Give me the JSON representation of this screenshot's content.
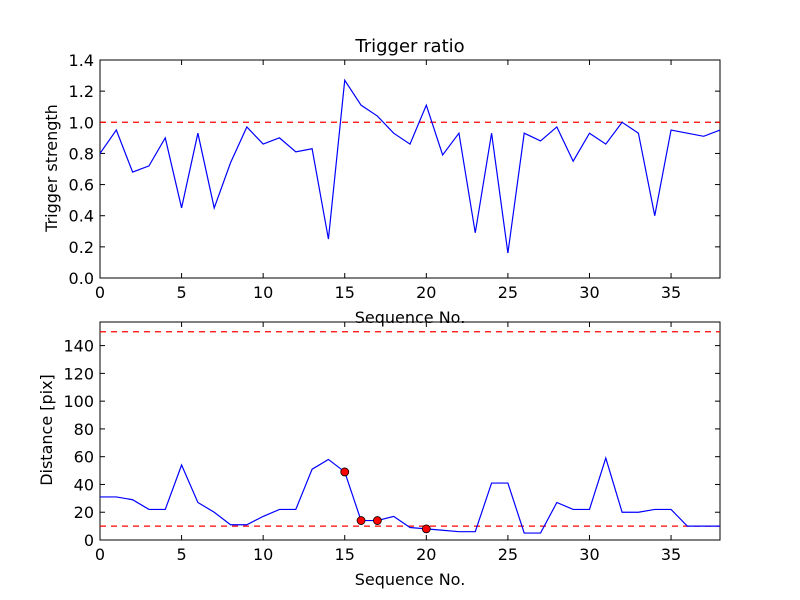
{
  "chart_data": [
    {
      "type": "line",
      "title": "Trigger ratio",
      "xlabel": "Sequence No.",
      "ylabel": "Trigger strength",
      "xlim": [
        0,
        38
      ],
      "ylim": [
        0,
        1.4
      ],
      "xticks": [
        "0",
        "5",
        "10",
        "15",
        "20",
        "25",
        "30",
        "35"
      ],
      "yticks": [
        "0.0",
        "0.2",
        "0.4",
        "0.6",
        "0.8",
        "1.0",
        "1.2",
        "1.4"
      ],
      "threshold": 1.0,
      "line_color": "#0000ff",
      "threshold_color": "#ff0000",
      "series": [
        {
          "x": [
            0,
            1,
            2,
            3,
            4,
            5,
            6,
            7,
            8,
            9,
            10,
            11,
            12,
            13,
            14,
            15,
            16,
            17,
            18,
            19,
            20,
            21,
            22,
            23,
            24,
            25,
            26,
            27,
            28,
            29,
            30,
            31,
            32,
            33,
            34,
            35,
            36,
            37,
            38
          ],
          "values": [
            0.8,
            0.95,
            0.68,
            0.72,
            0.9,
            0.45,
            0.93,
            0.45,
            0.74,
            0.97,
            0.86,
            0.9,
            0.81,
            0.83,
            0.25,
            1.27,
            1.11,
            1.04,
            0.93,
            0.86,
            1.11,
            0.79,
            0.93,
            0.29,
            0.93,
            0.16,
            0.93,
            0.88,
            0.97,
            0.75,
            0.93,
            0.86,
            1.0,
            0.93,
            0.4,
            0.95,
            0.93,
            0.91,
            0.95
          ]
        }
      ]
    },
    {
      "type": "line",
      "title": "",
      "xlabel": "Sequence No.",
      "ylabel": "Distance [pix]",
      "xlim": [
        0,
        38
      ],
      "ylim": [
        0,
        157
      ],
      "xticks": [
        "0",
        "5",
        "10",
        "15",
        "20",
        "25",
        "30",
        "35"
      ],
      "yticks": [
        "0",
        "20",
        "40",
        "60",
        "80",
        "100",
        "120",
        "140"
      ],
      "thresholds": [
        150,
        10
      ],
      "line_color": "#0000ff",
      "threshold_color": "#ff0000",
      "marker_color": "#ff0000",
      "series": [
        {
          "x": [
            0,
            1,
            2,
            3,
            4,
            5,
            6,
            7,
            8,
            9,
            10,
            11,
            12,
            13,
            14,
            15,
            16,
            17,
            18,
            19,
            20,
            21,
            22,
            23,
            24,
            25,
            26,
            27,
            28,
            29,
            30,
            31,
            32,
            33,
            34,
            35,
            36,
            37,
            38
          ],
          "values": [
            31,
            31,
            29,
            22,
            22,
            54,
            27,
            20,
            11,
            11,
            17,
            22,
            22,
            51,
            58,
            49,
            14,
            14,
            17,
            9,
            8,
            7,
            6,
            6,
            41,
            41,
            5,
            5,
            27,
            22,
            22,
            59,
            20,
            20,
            22,
            22,
            10,
            10,
            10
          ]
        }
      ],
      "markers": {
        "x": [
          15,
          16,
          17,
          20
        ],
        "values": [
          49,
          14,
          14,
          8
        ]
      }
    }
  ]
}
